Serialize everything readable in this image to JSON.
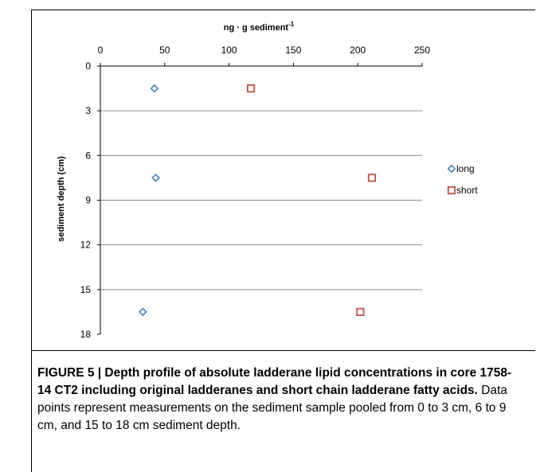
{
  "chart_data": {
    "type": "scatter",
    "title": "",
    "xlabel": "ng · g sediment",
    "xlabel_superscript": "-1",
    "ylabel": "sediment depth (cm)",
    "xlim": [
      0,
      250
    ],
    "ylim": [
      0,
      18
    ],
    "y_inverted": true,
    "x_axis_position": "top",
    "x_ticks": [
      "0",
      "50",
      "100",
      "150",
      "200",
      "250"
    ],
    "y_ticks": [
      "0",
      "3",
      "6",
      "9",
      "12",
      "15",
      "18"
    ],
    "grid": "horizontal",
    "legend_position": "right",
    "series": [
      {
        "name": "long",
        "marker": "diamond",
        "color": "#4a7ebb",
        "points": [
          {
            "x": 42,
            "y": 1.5
          },
          {
            "x": 43,
            "y": 7.5
          },
          {
            "x": 33,
            "y": 16.5
          }
        ]
      },
      {
        "name": "short",
        "marker": "square",
        "color": "#c0504d",
        "points": [
          {
            "x": 117,
            "y": 1.5
          },
          {
            "x": 211,
            "y": 7.5
          },
          {
            "x": 202,
            "y": 16.5
          }
        ]
      }
    ]
  },
  "caption": {
    "title": "FIGURE 5 | Depth profile of absolute ladderane lipid concentrations in core 1758-14 CT2 including original ladderanes and short chain ladderane fatty acids.",
    "body": " Data points represent measurements on the sediment sample pooled from 0 to 3 cm, 6 to 9 cm, and 15 to 18 cm sediment depth."
  }
}
